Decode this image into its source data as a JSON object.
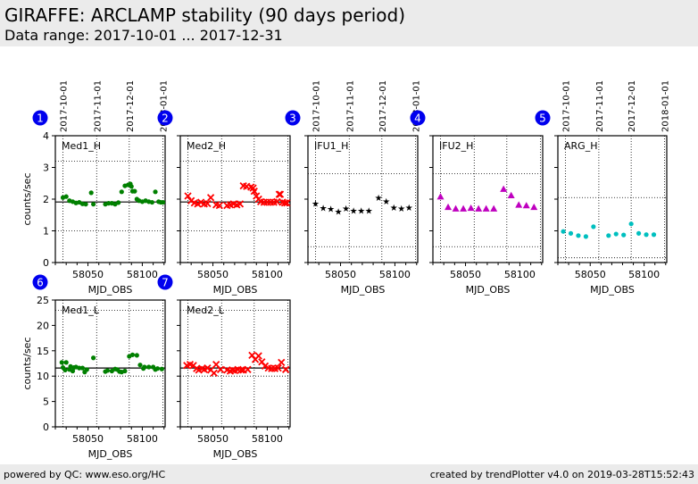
{
  "header": {
    "title": "GIRAFFE: ARCLAMP stability (90 days period)",
    "subtitle": "Data range: 2017-10-01 ... 2017-12-31"
  },
  "footer": {
    "left": "powered by QC: www.eso.org/HC",
    "right": "created by trendPlotter v4.0 on 2019-03-28T15:52:43"
  },
  "chart_data": [
    {
      "type": "scatter",
      "id": 1,
      "badge": "1",
      "title": "Med1_H",
      "xlabel": "MJD_OBS",
      "ylabel": "counts/sec",
      "xlim": [
        58020,
        58121
      ],
      "ylim": [
        0,
        4
      ],
      "yticks": [
        0,
        1,
        2,
        3,
        4
      ],
      "xticks": [
        58050,
        58100
      ],
      "show_ytick_labels": true,
      "show_date_labels": true,
      "date_lines": [
        {
          "mjd": 58027,
          "label": "2017-10-01"
        },
        {
          "mjd": 58058,
          "label": "2017-11-01"
        },
        {
          "mjd": 58088,
          "label": "2017-12-01"
        },
        {
          "mjd": 58119,
          "label": "2018-01-01"
        }
      ],
      "hgrid": [
        1.0,
        3.2
      ],
      "ref_line": 1.91,
      "marker": "circle",
      "color": "#008000",
      "x": [
        58027,
        58030,
        58033,
        58036,
        58039,
        58042,
        58045,
        58048,
        58053,
        58055,
        58066,
        58069,
        58072,
        58075,
        58078,
        58081,
        58084,
        58087,
        58089,
        58090,
        58091,
        58093,
        58095,
        58097,
        58100,
        58103,
        58106,
        58109,
        58112,
        58115,
        58117,
        58119
      ],
      "y": [
        2.05,
        2.08,
        1.95,
        1.92,
        1.88,
        1.9,
        1.85,
        1.84,
        2.2,
        1.84,
        1.84,
        1.87,
        1.87,
        1.84,
        1.89,
        2.23,
        2.42,
        2.45,
        2.48,
        2.4,
        2.25,
        2.25,
        2.0,
        1.95,
        1.92,
        1.95,
        1.92,
        1.9,
        2.23,
        1.92,
        1.9,
        1.9
      ]
    },
    {
      "type": "scatter",
      "id": 2,
      "badge": "2",
      "title": "Med2_H",
      "xlabel": "MJD_OBS",
      "ylabel": "",
      "xlim": [
        58020,
        58121
      ],
      "ylim": [
        0,
        4
      ],
      "yticks": [
        0,
        1,
        2,
        3,
        4
      ],
      "xticks": [
        58050,
        58100
      ],
      "show_ytick_labels": false,
      "show_date_labels": false,
      "date_lines": [
        {
          "mjd": 58027,
          "label": "2017-10-01"
        },
        {
          "mjd": 58058,
          "label": "2017-11-01"
        },
        {
          "mjd": 58088,
          "label": "2017-12-01"
        },
        {
          "mjd": 58119,
          "label": "2018-01-01"
        }
      ],
      "hgrid": [
        1.0,
        3.2
      ],
      "ref_line": 1.91,
      "marker": "x",
      "color": "#ff0000",
      "x": [
        58027,
        58030,
        58033,
        58036,
        58039,
        58042,
        58045,
        58048,
        58053,
        58056,
        58063,
        58066,
        58069,
        58072,
        58075,
        58078,
        58081,
        58085,
        58087,
        58088,
        58090,
        58092,
        58094,
        58097,
        58100,
        58103,
        58106,
        58109,
        58111,
        58112,
        58114,
        58116,
        58118
      ],
      "y": [
        2.1,
        1.95,
        1.88,
        1.85,
        1.9,
        1.85,
        1.86,
        2.05,
        1.82,
        1.8,
        1.8,
        1.82,
        1.85,
        1.82,
        1.85,
        2.42,
        2.4,
        2.38,
        2.35,
        2.25,
        2.1,
        2.0,
        1.92,
        1.9,
        1.9,
        1.9,
        1.9,
        1.92,
        2.15,
        2.15,
        1.9,
        1.88,
        1.88
      ]
    },
    {
      "type": "scatter",
      "id": 3,
      "badge": "3",
      "title": "IFU1_H",
      "xlabel": "MJD_OBS",
      "ylabel": "",
      "xlim": [
        58020,
        58121
      ],
      "ylim": [
        0,
        4
      ],
      "yticks": [
        0,
        1,
        2,
        3,
        4
      ],
      "xticks": [
        58050,
        58100
      ],
      "show_ytick_labels": false,
      "show_date_labels": true,
      "date_lines": [
        {
          "mjd": 58027,
          "label": "2017-10-01"
        },
        {
          "mjd": 58058,
          "label": "2017-11-01"
        },
        {
          "mjd": 58088,
          "label": "2017-12-01"
        },
        {
          "mjd": 58119,
          "label": "2018-01-01"
        }
      ],
      "hgrid": [
        0.5,
        2.8
      ],
      "ref_line": null,
      "marker": "star",
      "color": "#000000",
      "x": [
        58027,
        58034,
        58041,
        58048,
        58055,
        58062,
        58069,
        58076,
        58085,
        58092,
        58099,
        58106,
        58113
      ],
      "y": [
        1.88,
        1.73,
        1.7,
        1.62,
        1.72,
        1.65,
        1.65,
        1.65,
        2.05,
        1.95,
        1.75,
        1.72,
        1.75
      ]
    },
    {
      "type": "scatter",
      "id": 4,
      "badge": "4",
      "title": "IFU2_H",
      "xlabel": "MJD_OBS",
      "ylabel": "",
      "xlim": [
        58020,
        58121
      ],
      "ylim": [
        0,
        4
      ],
      "yticks": [
        0,
        1,
        2,
        3,
        4
      ],
      "xticks": [
        58050,
        58100
      ],
      "show_ytick_labels": false,
      "show_date_labels": false,
      "date_lines": [
        {
          "mjd": 58027,
          "label": "2017-10-01"
        },
        {
          "mjd": 58058,
          "label": "2017-11-01"
        },
        {
          "mjd": 58088,
          "label": "2017-12-01"
        },
        {
          "mjd": 58119,
          "label": "2018-01-01"
        }
      ],
      "hgrid": [
        0.5,
        2.8
      ],
      "ref_line": null,
      "marker": "triangle",
      "color": "#bf00bf",
      "x": [
        58027,
        58034,
        58041,
        58048,
        58055,
        58062,
        58069,
        58076,
        58085,
        58092,
        58099,
        58106,
        58113
      ],
      "y": [
        2.08,
        1.75,
        1.7,
        1.7,
        1.72,
        1.7,
        1.7,
        1.7,
        2.32,
        2.12,
        1.82,
        1.8,
        1.75
      ]
    },
    {
      "type": "scatter",
      "id": 5,
      "badge": "5",
      "title": "ARG_H",
      "xlabel": "MJD_OBS",
      "ylabel": "",
      "xlim": [
        58020,
        58121
      ],
      "ylim": [
        0,
        4
      ],
      "yticks": [
        0,
        1,
        2,
        3,
        4
      ],
      "xticks": [
        58050,
        58100
      ],
      "show_ytick_labels": false,
      "show_date_labels": true,
      "date_lines": [
        {
          "mjd": 58027,
          "label": "2017-10-01"
        },
        {
          "mjd": 58058,
          "label": "2017-11-01"
        },
        {
          "mjd": 58088,
          "label": "2017-12-01"
        },
        {
          "mjd": 58119,
          "label": "2018-01-01"
        }
      ],
      "hgrid": [
        0.15,
        2.05
      ],
      "ref_line": null,
      "marker": "circle",
      "color": "#00bfbf",
      "x": [
        58025,
        58032,
        58039,
        58046,
        58053,
        58067,
        58074,
        58081,
        58088,
        58095,
        58102,
        58109
      ],
      "y": [
        0.98,
        0.92,
        0.85,
        0.82,
        1.13,
        0.85,
        0.9,
        0.87,
        1.22,
        0.92,
        0.88,
        0.88
      ]
    },
    {
      "type": "scatter",
      "id": 6,
      "badge": "6",
      "title": "Med1_L",
      "xlabel": "MJD_OBS",
      "ylabel": "counts/sec",
      "xlim": [
        58020,
        58121
      ],
      "ylim": [
        0,
        25
      ],
      "yticks": [
        0,
        5,
        10,
        15,
        20,
        25
      ],
      "xticks": [
        58050,
        58100
      ],
      "show_ytick_labels": true,
      "show_date_labels": false,
      "date_lines": [
        {
          "mjd": 58027,
          "label": "2017-10-01"
        },
        {
          "mjd": 58058,
          "label": "2017-11-01"
        },
        {
          "mjd": 58088,
          "label": "2017-12-01"
        },
        {
          "mjd": 58119,
          "label": "2018-01-01"
        }
      ],
      "hgrid": [
        10.0,
        23.0
      ],
      "ref_line": 11.6,
      "marker": "circle",
      "color": "#008000",
      "x": [
        58026,
        58027,
        58029,
        58030,
        58033,
        58034,
        58036,
        58037,
        58039,
        58042,
        58045,
        58047,
        58049,
        58055,
        58066,
        58068,
        58072,
        58075,
        58077,
        58079,
        58081,
        58084,
        58088,
        58091,
        58095,
        58098,
        58101,
        58102,
        58106,
        58110,
        58112,
        58114,
        58118
      ],
      "y": [
        12.7,
        11.7,
        11.2,
        12.7,
        11.3,
        11.9,
        11.0,
        11.7,
        11.8,
        11.6,
        11.6,
        10.8,
        11.3,
        13.6,
        10.9,
        11.1,
        11.0,
        11.4,
        11.3,
        10.9,
        10.8,
        11.0,
        13.9,
        14.2,
        14.1,
        12.2,
        11.5,
        11.8,
        11.8,
        11.8,
        11.3,
        11.5,
        11.4
      ]
    },
    {
      "type": "scatter",
      "id": 7,
      "badge": "7",
      "title": "Med2_L",
      "xlabel": "MJD_OBS",
      "ylabel": "",
      "xlim": [
        58020,
        58121
      ],
      "ylim": [
        0,
        25
      ],
      "yticks": [
        0,
        5,
        10,
        15,
        20,
        25
      ],
      "xticks": [
        58050,
        58100
      ],
      "show_ytick_labels": false,
      "show_date_labels": false,
      "date_lines": [
        {
          "mjd": 58027,
          "label": "2017-10-01"
        },
        {
          "mjd": 58058,
          "label": "2017-11-01"
        },
        {
          "mjd": 58088,
          "label": "2017-12-01"
        },
        {
          "mjd": 58119,
          "label": "2018-01-01"
        }
      ],
      "hgrid": [
        10.0,
        23.0
      ],
      "ref_line": 11.6,
      "marker": "x",
      "color": "#ff0000",
      "x": [
        58026,
        58029,
        58032,
        58035,
        58037,
        58040,
        58042,
        58045,
        58048,
        58051,
        58053,
        58057,
        58063,
        58066,
        58068,
        58070,
        58073,
        58076,
        58078,
        58082,
        58086,
        58089,
        58092,
        58095,
        58098,
        58101,
        58104,
        58107,
        58110,
        58113,
        58117
      ],
      "y": [
        12.1,
        12.3,
        12.1,
        11.5,
        11.2,
        11.5,
        11.3,
        11.6,
        11.2,
        10.6,
        12.3,
        11.3,
        11.2,
        11.0,
        11.2,
        11.1,
        11.3,
        11.2,
        11.2,
        11.3,
        14.1,
        13.3,
        14.0,
        12.8,
        12.0,
        11.6,
        11.5,
        11.5,
        11.6,
        12.7,
        11.3
      ]
    }
  ]
}
